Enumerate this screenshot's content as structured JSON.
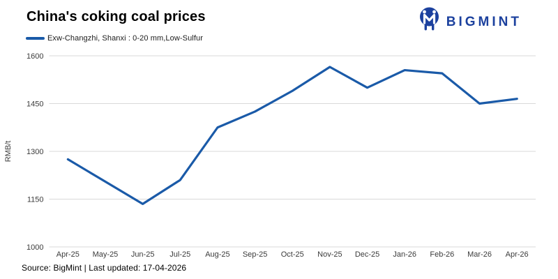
{
  "header": {
    "title": "China's coking coal prices",
    "logo_text": "BIGMINT"
  },
  "legend": {
    "label": "Exw-Changzhi, Shanxi : 0-20 mm,Low-Sulfur"
  },
  "footer": {
    "text": "Source: BigMint | Last updated: 17-04-2026"
  },
  "colors": {
    "line": "#1a5aa8",
    "logo": "#1c419e",
    "grid": "#d9d9d9",
    "tick_text": "#3a3a3a"
  },
  "chart_data": {
    "type": "line",
    "title": "China's coking coal prices",
    "xlabel": "",
    "ylabel": "RMB/t",
    "categories": [
      "Apr-25",
      "May-25",
      "Jun-25",
      "Jul-25",
      "Aug-25",
      "Sep-25",
      "Oct-25",
      "Nov-25",
      "Dec-25",
      "Jan-26",
      "Feb-26",
      "Mar-26",
      "Apr-26"
    ],
    "series": [
      {
        "name": "Exw-Changzhi, Shanxi : 0-20 mm,Low-Sulfur",
        "values": [
          1275,
          1205,
          1135,
          1210,
          1375,
          1425,
          1490,
          1565,
          1500,
          1555,
          1545,
          1450,
          1465
        ]
      }
    ],
    "ylim": [
      1000,
      1600
    ],
    "yticks": [
      1000,
      1150,
      1300,
      1450,
      1600
    ],
    "grid": true,
    "legend_position": "top-left"
  }
}
